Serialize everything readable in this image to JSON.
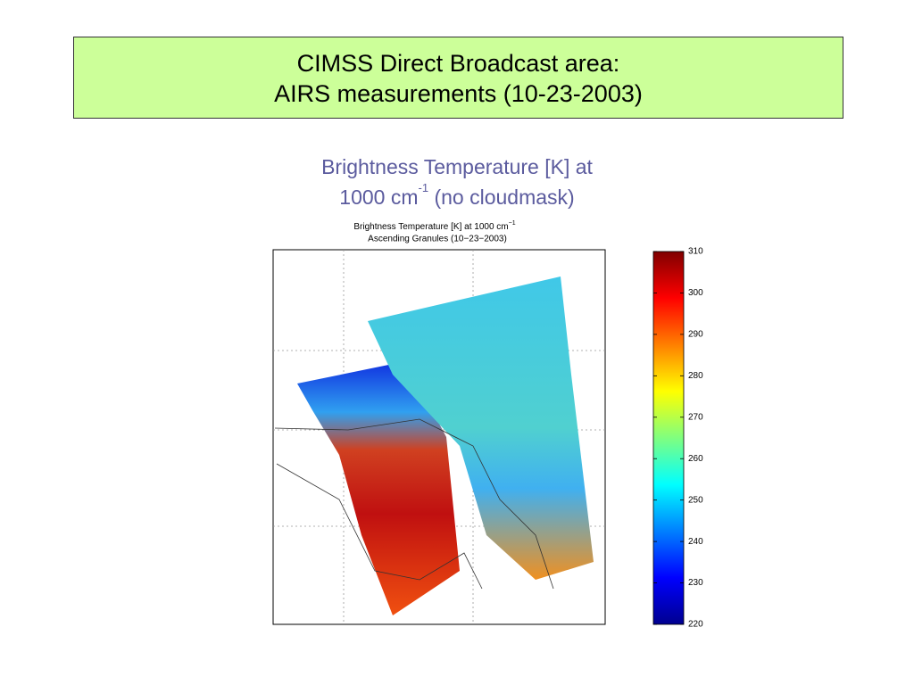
{
  "slide": {
    "title": [
      "CIMSS Direct Broadcast area:",
      "AIRS measurements (10-23-2003)"
    ],
    "subtitle": {
      "line1": "Brightness Temperature [K] at",
      "line2_prefix": "1000 cm",
      "line2_sup": "-1",
      "line2_suffix": "(no cloudmask)"
    }
  },
  "figure": {
    "title_main": "Brightness Temperature [K] at 1000 cm",
    "title_sup": "−1",
    "title_line2": "Ascending Granules (10−23−2003)",
    "colorbar": {
      "lim": [
        220,
        310
      ],
      "ticks": [
        220,
        230,
        240,
        250,
        260,
        270,
        280,
        290,
        300,
        310
      ]
    }
  }
}
